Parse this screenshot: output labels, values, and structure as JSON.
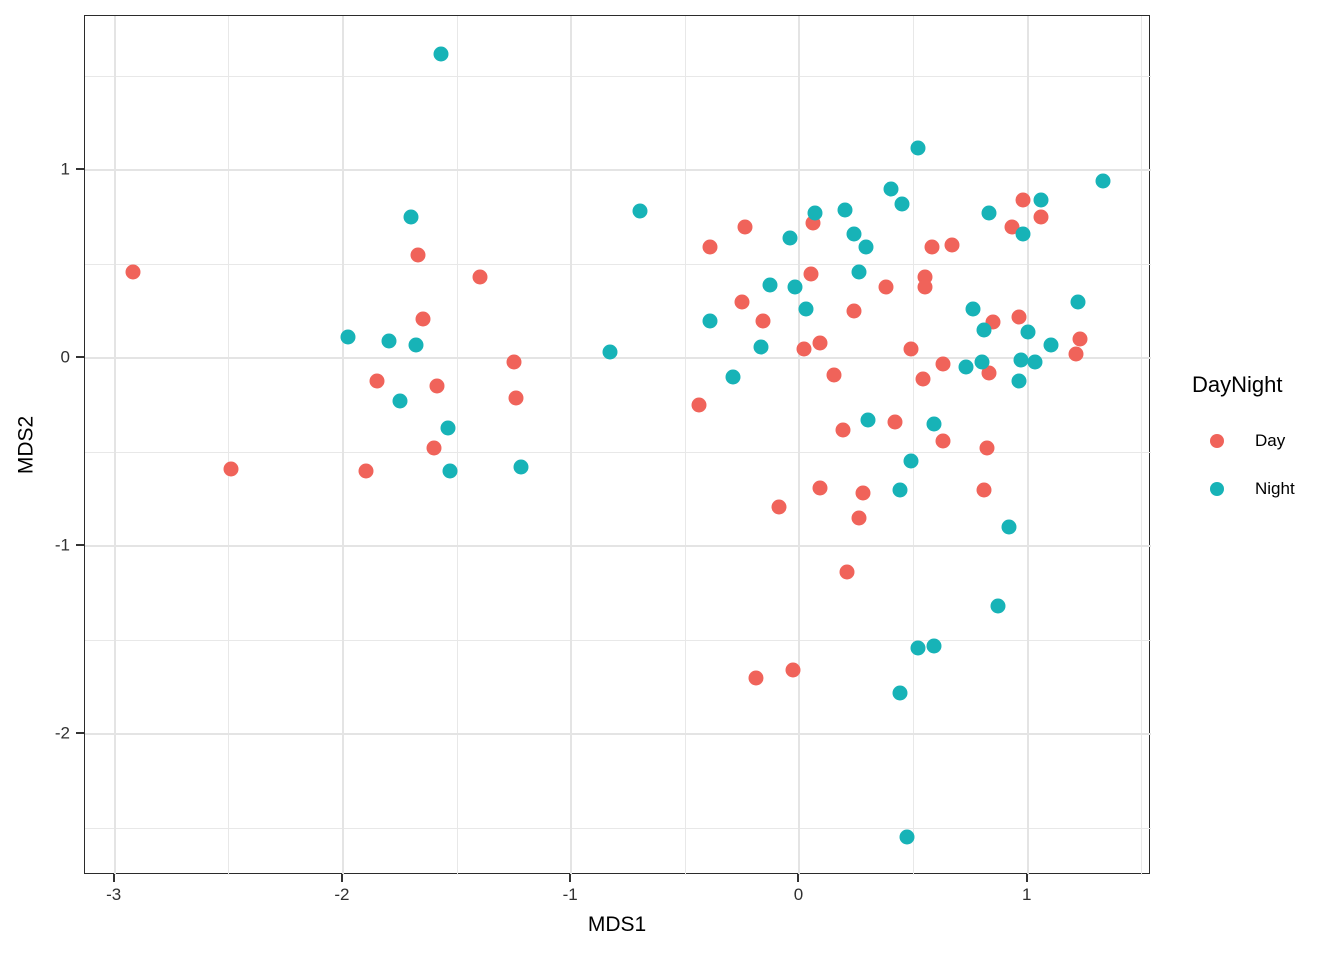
{
  "chart_data": {
    "type": "scatter",
    "title": "",
    "xlabel": "MDS1",
    "ylabel": "MDS2",
    "x_range": [
      -3.13,
      1.54
    ],
    "y_range": [
      -2.75,
      1.82
    ],
    "x_ticks": [
      "-3",
      "-2",
      "-1",
      "0",
      "1"
    ],
    "x_tick_values": [
      -3,
      -2,
      -1,
      0,
      1
    ],
    "y_ticks": [
      "-2",
      "-1",
      "0",
      "1"
    ],
    "y_tick_values": [
      -2,
      -1,
      0,
      1
    ],
    "x_minor_values": [
      -2.5,
      -1.5,
      -0.5,
      0.5,
      1.5
    ],
    "y_minor_values": [
      -2.5,
      -1.5,
      -0.5,
      0.5,
      1.5
    ],
    "grid": true,
    "panel_border_color": "#2b2b2b",
    "gridline_color": "#e6e6e6",
    "legend": {
      "title": "DayNight",
      "position": "right",
      "items": [
        {
          "label": "Day",
          "color": "#F0635A"
        },
        {
          "label": "Night",
          "color": "#17B3B7"
        }
      ]
    },
    "series": [
      {
        "name": "Day",
        "color": "#F0635A",
        "points": [
          [
            -2.92,
            0.46
          ],
          [
            -2.49,
            -0.59
          ],
          [
            -1.9,
            -0.6
          ],
          [
            -1.85,
            -0.12
          ],
          [
            -1.67,
            0.55
          ],
          [
            -1.65,
            0.21
          ],
          [
            -1.6,
            -0.48
          ],
          [
            -1.59,
            -0.15
          ],
          [
            -1.4,
            0.43
          ],
          [
            -1.25,
            -0.02
          ],
          [
            -1.24,
            -0.21
          ],
          [
            -0.44,
            -0.25
          ],
          [
            -0.39,
            0.59
          ],
          [
            -0.25,
            0.3
          ],
          [
            -0.24,
            0.7
          ],
          [
            -0.19,
            -1.7
          ],
          [
            -0.16,
            0.2
          ],
          [
            -0.09,
            -0.79
          ],
          [
            -0.03,
            -1.66
          ],
          [
            0.02,
            0.05
          ],
          [
            0.05,
            0.45
          ],
          [
            0.06,
            0.72
          ],
          [
            0.09,
            0.08
          ],
          [
            0.09,
            -0.69
          ],
          [
            0.15,
            -0.09
          ],
          [
            0.19,
            -0.38
          ],
          [
            0.21,
            -1.14
          ],
          [
            0.24,
            0.25
          ],
          [
            0.26,
            -0.85
          ],
          [
            0.28,
            -0.72
          ],
          [
            0.38,
            0.38
          ],
          [
            0.42,
            -0.34
          ],
          [
            0.49,
            0.05
          ],
          [
            0.54,
            -0.11
          ],
          [
            0.55,
            0.43
          ],
          [
            0.55,
            0.38
          ],
          [
            0.58,
            0.59
          ],
          [
            0.63,
            -0.03
          ],
          [
            0.63,
            -0.44
          ],
          [
            0.67,
            0.6
          ],
          [
            0.81,
            -0.7
          ],
          [
            0.82,
            -0.48
          ],
          [
            0.83,
            -0.08
          ],
          [
            0.85,
            0.19
          ],
          [
            0.93,
            0.7
          ],
          [
            0.96,
            0.22
          ],
          [
            0.98,
            0.84
          ],
          [
            1.06,
            0.75
          ],
          [
            1.21,
            0.02
          ],
          [
            1.23,
            0.1
          ]
        ]
      },
      {
        "name": "Night",
        "color": "#17B3B7",
        "points": [
          [
            -1.98,
            0.11
          ],
          [
            -1.8,
            0.09
          ],
          [
            -1.75,
            -0.23
          ],
          [
            -1.7,
            0.75
          ],
          [
            -1.68,
            0.07
          ],
          [
            -1.57,
            1.62
          ],
          [
            -1.54,
            -0.37
          ],
          [
            -1.53,
            -0.6
          ],
          [
            -1.22,
            -0.58
          ],
          [
            -0.83,
            0.03
          ],
          [
            -0.7,
            0.78
          ],
          [
            -0.39,
            0.2
          ],
          [
            -0.29,
            -0.1
          ],
          [
            -0.17,
            0.06
          ],
          [
            -0.13,
            0.39
          ],
          [
            -0.04,
            0.64
          ],
          [
            -0.02,
            0.38
          ],
          [
            0.03,
            0.26
          ],
          [
            0.07,
            0.77
          ],
          [
            0.2,
            0.79
          ],
          [
            0.24,
            0.66
          ],
          [
            0.26,
            0.46
          ],
          [
            0.29,
            0.59
          ],
          [
            0.3,
            -0.33
          ],
          [
            0.4,
            0.9
          ],
          [
            0.44,
            -0.7
          ],
          [
            0.44,
            -1.78
          ],
          [
            0.45,
            0.82
          ],
          [
            0.47,
            -2.55
          ],
          [
            0.49,
            -0.55
          ],
          [
            0.52,
            1.12
          ],
          [
            0.52,
            -1.54
          ],
          [
            0.59,
            -1.53
          ],
          [
            0.59,
            -0.35
          ],
          [
            0.73,
            -0.05
          ],
          [
            0.76,
            0.26
          ],
          [
            0.8,
            -0.02
          ],
          [
            0.81,
            0.15
          ],
          [
            0.83,
            0.77
          ],
          [
            0.87,
            -1.32
          ],
          [
            0.92,
            -0.9
          ],
          [
            0.96,
            -0.12
          ],
          [
            0.97,
            -0.01
          ],
          [
            0.98,
            0.66
          ],
          [
            1.0,
            0.14
          ],
          [
            1.03,
            -0.02
          ],
          [
            1.06,
            0.84
          ],
          [
            1.1,
            0.07
          ],
          [
            1.22,
            0.3
          ],
          [
            1.33,
            0.94
          ]
        ]
      }
    ]
  }
}
